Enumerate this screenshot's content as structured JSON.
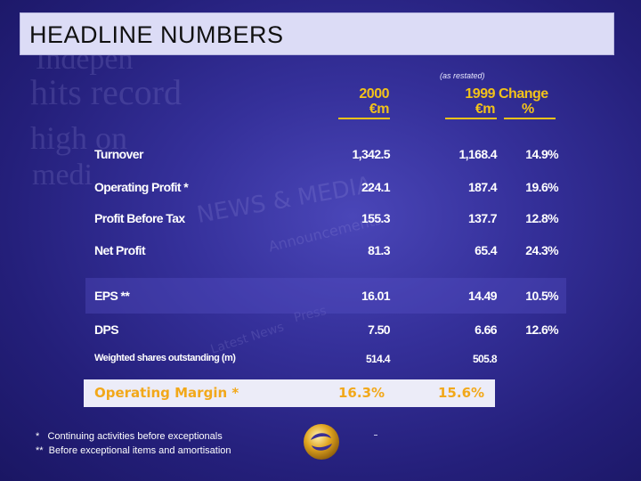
{
  "title": "HEADLINE NUMBERS",
  "background_words": [
    "Indepen",
    "hits record",
    "high on",
    "medi",
    "NEWS & MEDIA",
    "Announcements",
    "Latest News",
    "Press"
  ],
  "columns": {
    "restated_note": "(as restated)",
    "y2000": {
      "year": "2000",
      "unit": "€m"
    },
    "y1999": {
      "year": "1999",
      "unit": "€m"
    },
    "change": {
      "label": "Change",
      "unit": "%"
    }
  },
  "rows": [
    {
      "label": "Turnover",
      "v2000": "1,342.5",
      "v1999": "1,168.4",
      "change": "14.9%"
    },
    {
      "label": "Operating Profit *",
      "v2000": "224.1",
      "v1999": "187.4",
      "change": "19.6%"
    },
    {
      "label": "Profit Before Tax",
      "v2000": "155.3",
      "v1999": "137.7",
      "change": "12.8%"
    },
    {
      "label": "Net Profit",
      "v2000": "81.3",
      "v1999": "65.4",
      "change": "24.3%"
    },
    {
      "label": "EPS **",
      "v2000": "16.01",
      "v1999": "14.49",
      "change": "10.5%"
    },
    {
      "label": "DPS",
      "v2000": "7.50",
      "v1999": "6.66",
      "change": "12.6%"
    },
    {
      "label": "Weighted shares outstanding (m)",
      "v2000": "514.4",
      "v1999": "505.8",
      "change": ""
    }
  ],
  "operating_margin": {
    "label": "Operating Margin *",
    "v2000": "16.3%",
    "v1999": "15.6%"
  },
  "footnotes": {
    "note1": "*   Continuing activities before exceptionals",
    "note2": "**  Before exceptional items and amortisation"
  },
  "colors": {
    "background": "#2e2a8c",
    "header_accent": "#f2c21a",
    "margin_text": "#f2a81a",
    "title_bar": "#dcdcf6"
  },
  "logo_icon": "gold-swirl-logo-icon"
}
